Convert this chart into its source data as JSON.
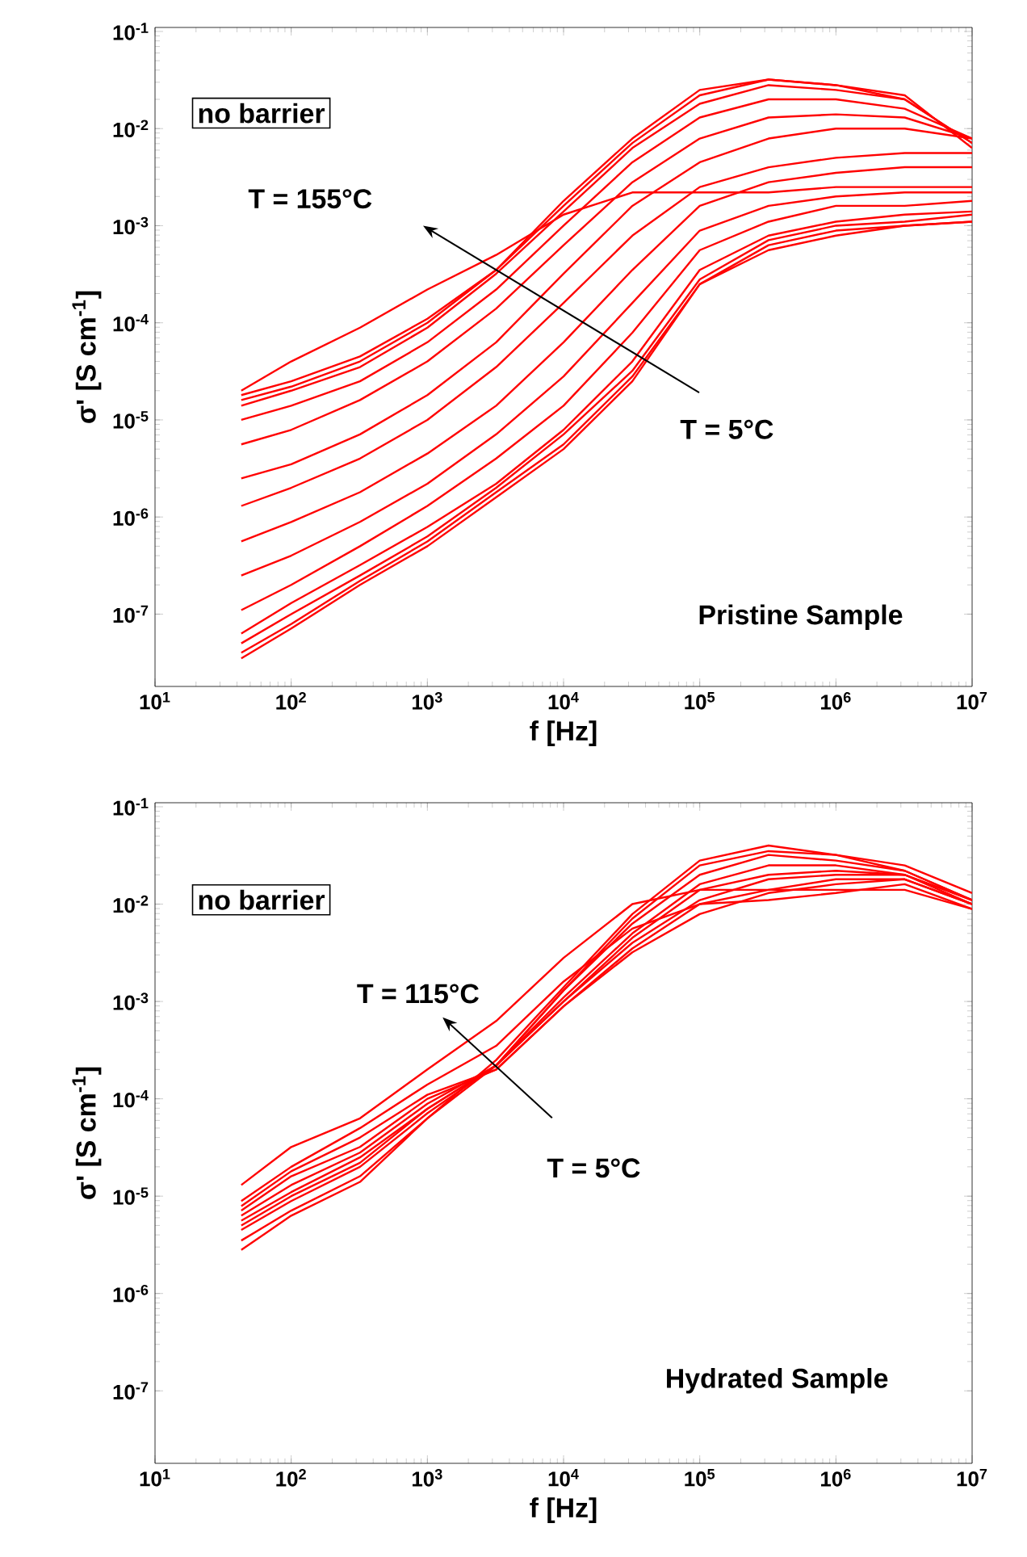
{
  "chart_data": [
    {
      "type": "line",
      "xlabel": "f [Hz]",
      "ylabel": "σ' [S cm$^{-1}$]",
      "log": "xy",
      "xlim": [
        10,
        10000000
      ],
      "ylim": [
        1.8e-08,
        0.11
      ],
      "xticks": [
        {
          "value": 10,
          "label": "10$^{1}$"
        },
        {
          "value": 100,
          "label": "10$^{2}$"
        },
        {
          "value": 1000,
          "label": "10$^{3}$"
        },
        {
          "value": 10000,
          "label": "10$^{4}$"
        },
        {
          "value": 100000,
          "label": "10$^{5}$"
        },
        {
          "value": 1000000,
          "label": "10$^{6}$"
        },
        {
          "value": 10000000,
          "label": "10$^{7}$"
        }
      ],
      "yticks": [
        {
          "value": 1e-07,
          "label": "10$^{-7}$"
        },
        {
          "value": 1e-06,
          "label": "10$^{-6}$"
        },
        {
          "value": 1e-05,
          "label": "10$^{-5}$"
        },
        {
          "value": 0.0001,
          "label": "10$^{-4}$"
        },
        {
          "value": 0.001,
          "label": "10$^{-3}$"
        },
        {
          "value": 0.01,
          "label": "10$^{-2}$"
        },
        {
          "value": 0.1,
          "label": "10$^{-1}$"
        }
      ],
      "annotations": [
        "no barrier",
        "T = 155°C",
        "T = 5°C",
        "Pristine Sample"
      ],
      "x": [
        43,
        100,
        320,
        1000,
        3200,
        10000,
        32000,
        100000,
        320000,
        1000000,
        3200000,
        10000000
      ],
      "series": [
        {
          "color": "#ff0000",
          "values": [
            3.5e-08,
            7.1e-08,
            2e-07,
            5e-07,
            1.6e-06,
            5e-06,
            2.5e-05,
            0.00025,
            0.00056,
            0.00079,
            0.001,
            0.0011
          ]
        },
        {
          "color": "#ff0000",
          "values": [
            4e-08,
            7.9e-08,
            2.2e-07,
            5.6e-07,
            1.8e-06,
            5.6e-06,
            2.8e-05,
            0.00025,
            0.00063,
            0.00089,
            0.001,
            0.0011
          ]
        },
        {
          "color": "#ff0000",
          "values": [
            5e-08,
            1e-07,
            2.5e-07,
            6.3e-07,
            2e-06,
            7.1e-06,
            3.2e-05,
            0.00028,
            0.00071,
            0.001,
            0.0011,
            0.0013
          ]
        },
        {
          "color": "#ff0000",
          "values": [
            6.3e-08,
            1.3e-07,
            3.2e-07,
            7.9e-07,
            2.2e-06,
            7.9e-06,
            4e-05,
            0.00035,
            0.00079,
            0.0011,
            0.0013,
            0.0014
          ]
        },
        {
          "color": "#ff0000",
          "values": [
            1.1e-07,
            2e-07,
            5e-07,
            1.3e-06,
            4e-06,
            1.4e-05,
            7.9e-05,
            0.00056,
            0.0011,
            0.0016,
            0.0016,
            0.0018
          ]
        },
        {
          "color": "#ff0000",
          "values": [
            2.5e-07,
            4e-07,
            8.9e-07,
            2.2e-06,
            7.1e-06,
            2.8e-05,
            0.00016,
            0.00089,
            0.0016,
            0.002,
            0.0022,
            0.0022
          ]
        },
        {
          "color": "#ff0000",
          "values": [
            5.6e-07,
            8.9e-07,
            1.8e-06,
            4.5e-06,
            1.4e-05,
            6.3e-05,
            0.00035,
            0.0016,
            0.0028,
            0.0035,
            0.004,
            0.004
          ]
        },
        {
          "color": "#ff0000",
          "values": [
            1.3e-06,
            2e-06,
            4e-06,
            1e-05,
            3.5e-05,
            0.00016,
            0.00079,
            0.0025,
            0.004,
            0.005,
            0.0056,
            0.0056
          ]
        },
        {
          "color": "#ff0000",
          "values": [
            2.5e-06,
            3.5e-06,
            7.1e-06,
            1.8e-05,
            6.3e-05,
            0.00032,
            0.0016,
            0.0045,
            0.0079,
            0.01,
            0.01,
            0.0079
          ]
        },
        {
          "color": "#ff0000",
          "values": [
            5.6e-06,
            7.9e-06,
            1.6e-05,
            4e-05,
            0.00014,
            0.00063,
            0.0028,
            0.0079,
            0.013,
            0.014,
            0.013,
            0.0079
          ]
        },
        {
          "color": "#ff0000",
          "values": [
            1e-05,
            1.4e-05,
            2.5e-05,
            6.3e-05,
            0.00022,
            0.001,
            0.0045,
            0.013,
            0.02,
            0.02,
            0.016,
            0.0079
          ]
        },
        {
          "color": "#ff0000",
          "values": [
            1.4e-05,
            2e-05,
            3.5e-05,
            8.9e-05,
            0.00032,
            0.0014,
            0.0063,
            0.018,
            0.028,
            0.025,
            0.02,
            0.0071
          ]
        },
        {
          "color": "#ff0000",
          "values": [
            1.6e-05,
            2.2e-05,
            4e-05,
            0.0001,
            0.00035,
            0.0016,
            0.0071,
            0.022,
            0.032,
            0.028,
            0.02,
            0.0071
          ]
        },
        {
          "color": "#ff0000",
          "values": [
            1.8e-05,
            2.5e-05,
            4.5e-05,
            0.00011,
            0.00035,
            0.0018,
            0.0079,
            0.025,
            0.032,
            0.028,
            0.022,
            0.0063
          ]
        },
        {
          "color": "#ff0000",
          "values": [
            2e-05,
            4e-05,
            8.9e-05,
            0.00022,
            0.0005,
            0.0013,
            0.0022,
            0.0022,
            0.0022,
            0.0025,
            0.0025,
            0.0025
          ]
        }
      ]
    },
    {
      "type": "line",
      "xlabel": "f [Hz]",
      "ylabel": "σ' [S cm$^{-1}$]",
      "log": "xy",
      "xlim": [
        10,
        10000000
      ],
      "ylim": [
        1.8e-08,
        0.11
      ],
      "xticks": [
        {
          "value": 10,
          "label": "10$^{1}$"
        },
        {
          "value": 100,
          "label": "10$^{2}$"
        },
        {
          "value": 1000,
          "label": "10$^{3}$"
        },
        {
          "value": 10000,
          "label": "10$^{4}$"
        },
        {
          "value": 100000,
          "label": "10$^{5}$"
        },
        {
          "value": 1000000,
          "label": "10$^{6}$"
        },
        {
          "value": 10000000,
          "label": "10$^{7}$"
        }
      ],
      "yticks": [
        {
          "value": 1e-07,
          "label": "10$^{-7}$"
        },
        {
          "value": 1e-06,
          "label": "10$^{-6}$"
        },
        {
          "value": 1e-05,
          "label": "10$^{-5}$"
        },
        {
          "value": 0.0001,
          "label": "10$^{-4}$"
        },
        {
          "value": 0.001,
          "label": "10$^{-3}$"
        },
        {
          "value": 0.01,
          "label": "10$^{-2}$"
        },
        {
          "value": 0.1,
          "label": "10$^{-1}$"
        }
      ],
      "annotations": [
        "no barrier",
        "T = 115°C",
        "T = 5°C",
        "Hydrated Sample"
      ],
      "x": [
        43,
        100,
        320,
        1000,
        3200,
        10000,
        32000,
        100000,
        320000,
        1000000,
        3200000,
        10000000
      ],
      "series": [
        {
          "color": "#ff0000",
          "values": [
            2.8e-06,
            6.3e-06,
            1.4e-05,
            6.3e-05,
            0.00025,
            0.0014,
            0.0079,
            0.028,
            0.04,
            0.032,
            0.025,
            0.013
          ]
        },
        {
          "color": "#ff0000",
          "values": [
            3.5e-06,
            7.1e-06,
            1.6e-05,
            6.3e-05,
            0.00022,
            0.0013,
            0.0071,
            0.025,
            0.035,
            0.032,
            0.022,
            0.011
          ]
        },
        {
          "color": "#ff0000",
          "values": [
            4.5e-06,
            8.9e-06,
            2e-05,
            7.1e-05,
            0.00022,
            0.0013,
            0.0063,
            0.02,
            0.032,
            0.028,
            0.022,
            0.011
          ]
        },
        {
          "color": "#ff0000",
          "values": [
            5e-06,
            1e-05,
            2.2e-05,
            7.9e-05,
            0.00022,
            0.0011,
            0.005,
            0.016,
            0.025,
            0.025,
            0.02,
            0.011
          ]
        },
        {
          "color": "#ff0000",
          "values": [
            5.6e-06,
            1.1e-05,
            2.5e-05,
            7.9e-05,
            0.00022,
            0.001,
            0.0045,
            0.014,
            0.02,
            0.022,
            0.02,
            0.011
          ]
        },
        {
          "color": "#ff0000",
          "values": [
            6.3e-06,
            1.3e-05,
            2.8e-05,
            8.9e-05,
            0.00022,
            0.001,
            0.004,
            0.011,
            0.018,
            0.02,
            0.02,
            0.01
          ]
        },
        {
          "color": "#ff0000",
          "values": [
            7.1e-06,
            1.6e-05,
            3.2e-05,
            0.0001,
            0.0002,
            0.00089,
            0.0035,
            0.01,
            0.014,
            0.018,
            0.018,
            0.01
          ]
        },
        {
          "color": "#ff0000",
          "values": [
            7.9e-06,
            1.8e-05,
            4e-05,
            0.00011,
            0.0002,
            0.00089,
            0.0032,
            0.0079,
            0.013,
            0.016,
            0.018,
            0.01
          ]
        },
        {
          "color": "#ff0000",
          "values": [
            8.9e-06,
            2e-05,
            5e-05,
            0.00014,
            0.00035,
            0.0016,
            0.0056,
            0.01,
            0.011,
            0.013,
            0.016,
            0.0089
          ]
        },
        {
          "color": "#ff0000",
          "values": [
            1.3e-05,
            3.2e-05,
            6.3e-05,
            0.0002,
            0.00063,
            0.0028,
            0.01,
            0.014,
            0.014,
            0.014,
            0.014,
            0.0089
          ]
        }
      ]
    }
  ]
}
